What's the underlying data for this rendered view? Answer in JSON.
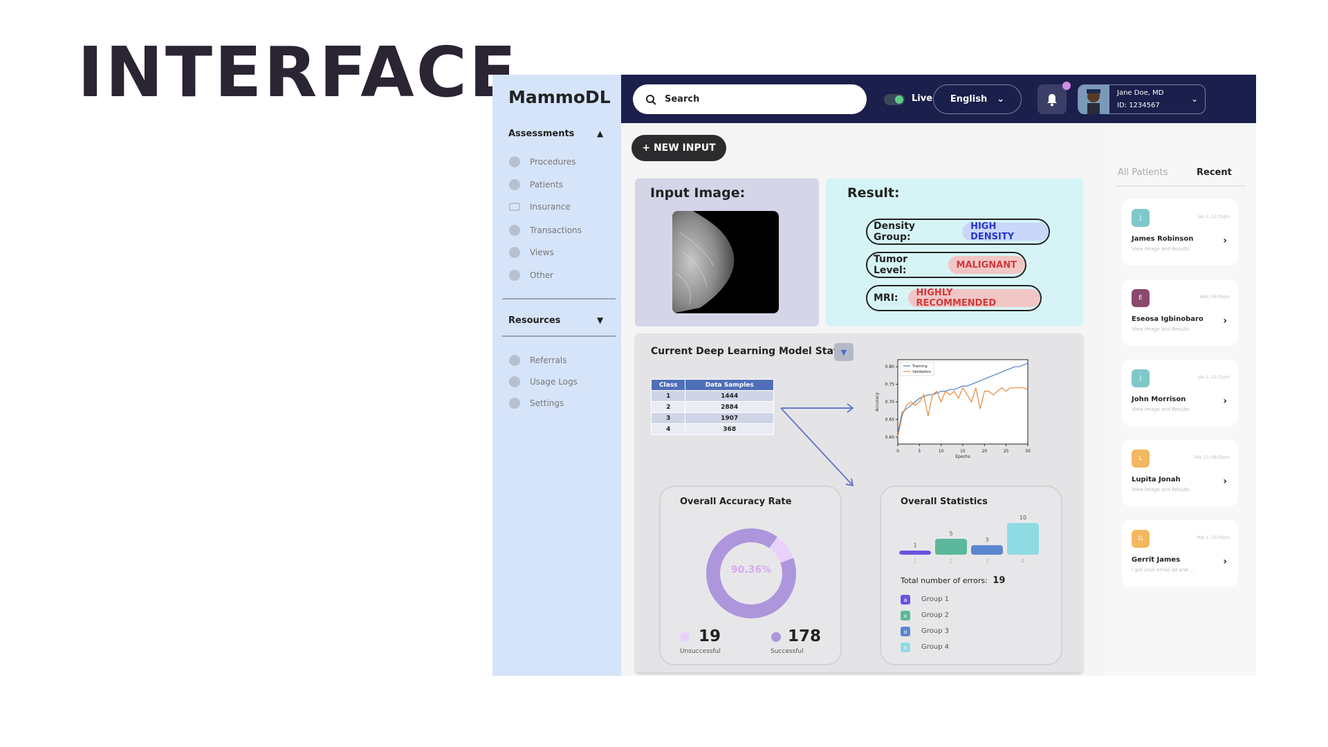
{
  "slide": {
    "title": "INTERFACE"
  },
  "sidebar": {
    "brand": "MammoDL",
    "assessments_label": "Assessments",
    "assessments_items": [
      {
        "label": "Procedures",
        "icon": "procedures-icon"
      },
      {
        "label": "Patients",
        "icon": "patients-icon"
      },
      {
        "label": "Insurance",
        "icon": "insurance-icon"
      },
      {
        "label": "Transactions",
        "icon": "transactions-icon"
      },
      {
        "label": "Views",
        "icon": "views-icon"
      },
      {
        "label": "Other",
        "icon": "other-icon"
      }
    ],
    "resources_label": "Resources",
    "resources_items": [
      {
        "label": "Referrals",
        "icon": "referrals-icon"
      },
      {
        "label": "Usage Logs",
        "icon": "eye-icon"
      },
      {
        "label": "Settings",
        "icon": "gear-icon"
      }
    ]
  },
  "topbar": {
    "search_placeholder": "Search",
    "live_label": "Live",
    "language": "English",
    "user_name": "Jane Doe, MD",
    "user_id": "ID: 1234567"
  },
  "main": {
    "new_input_label": "+ NEW INPUT",
    "input_title": "Input Image:",
    "result_title": "Result:",
    "results": [
      {
        "label": "Density Group:",
        "value": "HIGH DENSITY",
        "bg": "#c8d7fa",
        "fg": "#2a36c8"
      },
      {
        "label": "Tumor Level:",
        "value": "MALIGNANT",
        "bg": "#f3c6c6",
        "fg": "#d03a3a"
      },
      {
        "label": "MRI:",
        "value": "HIGHLY RECOMMENDED",
        "bg": "#f3c6c6",
        "fg": "#d03a3a"
      }
    ],
    "stats_title": "Current Deep Learning Model Stats",
    "class_table": {
      "headers": [
        "Class",
        "Data Samples"
      ],
      "rows": [
        [
          "1",
          "1444"
        ],
        [
          "2",
          "2884"
        ],
        [
          "3",
          "1907"
        ],
        [
          "4",
          "368"
        ]
      ]
    },
    "accuracy": {
      "title": "Overall Accuracy Rate",
      "percent_label": "90.36%",
      "fraction": 0.9036,
      "unsuccessful_value": "19",
      "unsuccessful_label": "Unsuccessful",
      "successful_value": "178",
      "successful_label": "Successful"
    },
    "overall": {
      "title": "Overall Statistics",
      "errors_label": "Total number of errors:",
      "errors_value": "19",
      "groups": [
        {
          "letter": "a",
          "label": "Group 1",
          "color": "#6b52e0"
        },
        {
          "letter": "x",
          "label": "Group 2",
          "color": "#5bb89a"
        },
        {
          "letter": "o",
          "label": "Group 3",
          "color": "#5b86cf"
        },
        {
          "letter": "n",
          "label": "Group 4",
          "color": "#8fdbe3"
        }
      ]
    }
  },
  "patients": {
    "tab_all": "All Patients",
    "tab_recent": "Recent",
    "list": [
      {
        "initial": "J",
        "name": "James Robinson",
        "sub": "View Image and Results",
        "date": "Jan 2, 12:31pm",
        "color": "#7fc8c9"
      },
      {
        "initial": "E",
        "name": "Eseosa Igbinobaro",
        "sub": "View Image and Results",
        "date": "Wed, 06:00pm",
        "color": "#8a4a6e"
      },
      {
        "initial": "J",
        "name": "John Morrison",
        "sub": "View Image and Results",
        "date": "Jan 2, 12:31pm",
        "color": "#7fc8c9"
      },
      {
        "initial": "L",
        "name": "Lupita Jonah",
        "sub": "View Image and Results",
        "date": "Feb 13, 08:01pm",
        "color": "#f2b860"
      },
      {
        "initial": "G",
        "name": "Gerrit James",
        "sub": "I got your email ad and ...",
        "date": "Mar 1, 10:00pm",
        "color": "#f2b860"
      }
    ]
  },
  "chart_data": [
    {
      "type": "line",
      "title": "",
      "xlabel": "Epochs",
      "ylabel": "Accuracy",
      "xlim": [
        0,
        30
      ],
      "ylim": [
        0.58,
        0.82
      ],
      "xticks": [
        0,
        5,
        10,
        15,
        20,
        25,
        30
      ],
      "yticks": [
        0.6,
        0.65,
        0.7,
        0.75,
        0.8
      ],
      "legend": "top-left",
      "series": [
        {
          "name": "Training",
          "color": "#4a7fc0",
          "x": [
            0,
            1,
            2,
            3,
            4,
            5,
            6,
            7,
            8,
            9,
            10,
            11,
            12,
            13,
            14,
            15,
            16,
            17,
            18,
            19,
            20,
            21,
            22,
            23,
            24,
            25,
            26,
            27,
            28,
            29,
            30
          ],
          "values": [
            0.61,
            0.67,
            0.68,
            0.69,
            0.7,
            0.71,
            0.715,
            0.72,
            0.72,
            0.725,
            0.73,
            0.73,
            0.735,
            0.735,
            0.74,
            0.745,
            0.745,
            0.75,
            0.755,
            0.76,
            0.765,
            0.77,
            0.775,
            0.78,
            0.785,
            0.79,
            0.795,
            0.8,
            0.8,
            0.805,
            0.81
          ]
        },
        {
          "name": "Validation",
          "color": "#e8883a",
          "x": [
            0,
            1,
            2,
            3,
            4,
            5,
            6,
            7,
            8,
            9,
            10,
            11,
            12,
            13,
            14,
            15,
            16,
            17,
            18,
            19,
            20,
            21,
            22,
            23,
            24,
            25,
            26,
            27,
            28,
            29,
            30
          ],
          "values": [
            0.6,
            0.66,
            0.69,
            0.7,
            0.69,
            0.7,
            0.72,
            0.66,
            0.72,
            0.73,
            0.7,
            0.73,
            0.72,
            0.73,
            0.71,
            0.74,
            0.72,
            0.7,
            0.74,
            0.68,
            0.73,
            0.73,
            0.72,
            0.73,
            0.74,
            0.73,
            0.74,
            0.74,
            0.74,
            0.74,
            0.735
          ]
        }
      ]
    },
    {
      "type": "bar",
      "title": "Overall Statistics",
      "categories": [
        "1",
        "2",
        "3",
        "4"
      ],
      "values": [
        1,
        5,
        3,
        10
      ],
      "colors": [
        "#6b52e0",
        "#5bb89a",
        "#5b86cf",
        "#8fdbe3"
      ]
    },
    {
      "type": "pie",
      "title": "Overall Accuracy Rate",
      "labels": [
        "Successful",
        "Unsuccessful"
      ],
      "values": [
        178,
        19
      ],
      "colors": [
        "#ad96dc",
        "#e8d2fb"
      ]
    }
  ]
}
